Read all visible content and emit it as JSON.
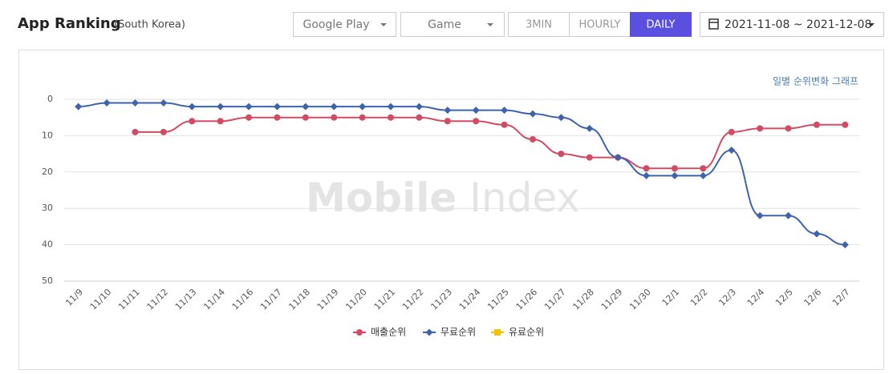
{
  "header": {
    "title": "App Ranking",
    "subtitle": "(South Korea)"
  },
  "controls": {
    "store": "Google Play",
    "category": "Game",
    "intervals": [
      "3MIN",
      "HOURLY",
      "DAILY"
    ],
    "active_interval": 2,
    "date_range": "2021-11-08 ~ 2021-12-08"
  },
  "chart_data": {
    "type": "line",
    "annotation": "일별 순위변화 그래프",
    "watermark": [
      "Mobile",
      "Index"
    ],
    "categories": [
      "11/9",
      "11/10",
      "11/11",
      "11/12",
      "11/13",
      "11/14",
      "11/16",
      "11/17",
      "11/18",
      "11/19",
      "11/20",
      "11/21",
      "11/22",
      "11/23",
      "11/24",
      "11/25",
      "11/26",
      "11/27",
      "11/28",
      "11/29",
      "11/30",
      "12/1",
      "12/2",
      "12/3",
      "12/4",
      "12/5",
      "12/6",
      "12/7"
    ],
    "series": [
      {
        "name": "매출순위",
        "color": "#d34b63",
        "marker": "circle",
        "values": [
          null,
          null,
          9,
          9,
          6,
          6,
          5,
          5,
          5,
          5,
          5,
          5,
          5,
          6,
          6,
          7,
          11,
          15,
          16,
          16,
          19,
          19,
          19,
          9,
          8,
          8,
          7,
          7
        ]
      },
      {
        "name": "무료순위",
        "color": "#3d63ad",
        "marker": "diamond",
        "values": [
          2,
          1,
          1,
          1,
          2,
          2,
          2,
          2,
          2,
          2,
          2,
          2,
          2,
          3,
          3,
          3,
          4,
          5,
          8,
          16,
          21,
          21,
          21,
          14,
          32,
          32,
          37,
          40
        ]
      },
      {
        "name": "유료순위",
        "color": "#f5c400",
        "marker": "square",
        "values": [
          null,
          null,
          null,
          null,
          null,
          null,
          null,
          null,
          null,
          null,
          null,
          null,
          null,
          null,
          null,
          null,
          null,
          null,
          null,
          null,
          null,
          null,
          null,
          null,
          null,
          null,
          null,
          null
        ]
      }
    ],
    "ylim": [
      0,
      50
    ],
    "yticks": [
      0,
      10,
      20,
      30,
      40,
      50
    ],
    "y_reversed": true,
    "grid": true,
    "legend": "bottom"
  }
}
